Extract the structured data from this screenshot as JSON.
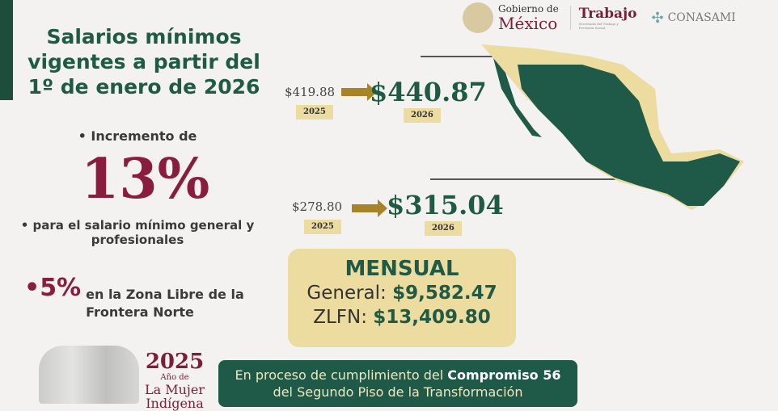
{
  "title": "Salarios mínimos vigentes a partir del 1º de enero de 2026",
  "bullet1": "Incremento de",
  "increase": "13%",
  "bullet2": "para el salario mínimo general y profesionales",
  "bullet3": {
    "pct": "5%",
    "text": "en la Zona Libre de la Frontera Norte"
  },
  "zlfn": {
    "old": "$419.88",
    "old_year": "2025",
    "new": "$440.87",
    "new_year": "2026"
  },
  "general": {
    "old": "$278.80",
    "old_year": "2025",
    "new": "$315.04",
    "new_year": "2026"
  },
  "monthly": {
    "heading": "MENSUAL",
    "general_label": "General:",
    "general_value": "$9,582.47",
    "zlfn_label": "ZLFN:",
    "zlfn_value": "$13,409.80"
  },
  "commitment": {
    "prefix": "En proceso de cumplimiento del",
    "bold": "Compromiso 56",
    "line2": "del Segundo Piso de la Transformación"
  },
  "year_badge": {
    "year": "2025",
    "line1": "Año de",
    "line2": "La Mujer",
    "line3": "Indígena"
  },
  "logos": {
    "gob_top": "Gobierno de",
    "gob_main": "México",
    "trabajo": "Trabajo",
    "trabajo_sub": "Secretaría del Trabajo y Previsión Social",
    "conasami": "CONASAMI"
  },
  "colors": {
    "green": "#1f5a46",
    "maroon": "#8a1d3f",
    "beige": "#ecdca0",
    "gold": "#a88429"
  }
}
